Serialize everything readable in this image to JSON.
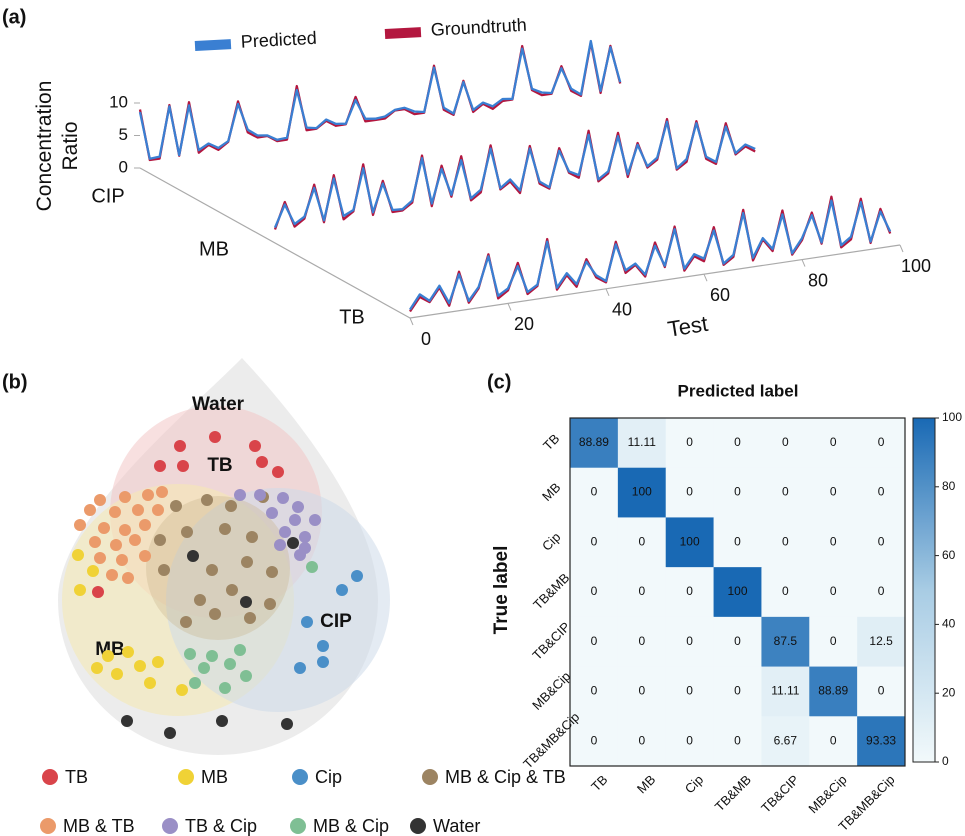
{
  "chart_data": [
    {
      "type": "line3d",
      "panel_label": "(a)",
      "ylabel": "Concentration Ratio",
      "xlabel": "Test",
      "z_categories": [
        "CIP",
        "MB",
        "TB"
      ],
      "xlim": [
        0,
        100
      ],
      "xticks": [
        0,
        20,
        40,
        60,
        80,
        100
      ],
      "ylim": [
        0,
        10
      ],
      "yticks": [
        0,
        5,
        10
      ],
      "x": [
        0,
        2,
        4,
        6,
        8,
        10,
        12,
        14,
        16,
        18,
        20,
        22,
        24,
        26,
        28,
        30,
        32,
        34,
        36,
        38,
        40,
        42,
        44,
        46,
        48,
        50,
        52,
        54,
        56,
        58,
        60,
        62,
        64,
        66,
        68,
        70,
        72,
        74,
        76,
        78,
        80,
        82,
        84,
        86,
        88,
        90,
        92,
        94,
        96,
        98
      ],
      "series": [
        {
          "name": "Predicted",
          "color": "#3a7fd2",
          "values": [
            [
              8.6,
              1.2,
              1.3,
              8.8,
              1.1,
              8.5,
              1.4,
              2.2,
              1.3,
              2.1,
              7.6,
              3.4,
              2.3,
              2.1,
              1.2,
              1.3,
              8.4,
              2.4,
              2.1,
              3.2,
              2.3,
              2.1,
              5.5,
              2.4,
              2.2,
              2.3,
              3.1,
              3.2,
              2.4,
              2.1,
              8.7,
              2.3,
              1.2,
              5.8,
              1.3,
              2.2,
              1.4,
              2.3,
              2.1,
              9.6,
              3.2,
              2.4,
              2.1,
              5.7,
              2.3,
              1.2,
              9.2,
              1.3,
              7.8,
              2.2
            ],
            [
              1.3,
              4.6,
              1.4,
              2.3,
              6.5,
              1.3,
              7.5,
              1.5,
              2.2,
              8.4,
              1.4,
              5.6,
              1.3,
              1.2,
              2.3,
              8.6,
              1.4,
              6.5,
              2.3,
              7.4,
              1.3,
              2.4,
              8.5,
              2.2,
              3.3,
              1.4,
              7.6,
              2.3,
              1.2,
              6.6,
              3.2,
              2.4,
              8.4,
              1.3,
              2.3,
              7.5,
              1.4,
              5.7,
              2.2,
              3.3,
              8.6,
              1.2,
              2.4,
              7.7,
              2.3,
              1.3,
              6.5,
              2.2,
              3.3,
              2.4
            ],
            [
              1.3,
              3.4,
              2.2,
              4.3,
              1.4,
              5.6,
              1.3,
              3.2,
              7.7,
              1.4,
              2.3,
              5.5,
              1.3,
              2.2,
              8.6,
              1.3,
              3.3,
              1.4,
              4.6,
              2.3,
              1.2,
              6.6,
              2.4,
              3.2,
              1.3,
              5.5,
              2.2,
              7.6,
              1.3,
              3.3,
              2.4,
              6.5,
              1.2,
              2.3,
              8.5,
              1.4,
              4.2,
              2.3,
              7.4,
              1.2,
              3.3,
              6.6,
              2.2,
              8.4,
              1.3,
              2.4,
              7.5,
              1.2,
              5.6,
              2.3
            ]
          ]
        },
        {
          "name": "Groundtruth",
          "color": "#b3173f",
          "values": [
            [
              9,
              1,
              1,
              9,
              1,
              9,
              1,
              2,
              1,
              2,
              8,
              3,
              2,
              2,
              1,
              1,
              9,
              2,
              2,
              3,
              2,
              2,
              6,
              2,
              2,
              2,
              3,
              3,
              2,
              2,
              9,
              2,
              1,
              6,
              1,
              2,
              1,
              2,
              2,
              10,
              3,
              2,
              2,
              6,
              2,
              1,
              9,
              1,
              8,
              2
            ],
            [
              1,
              5,
              1,
              2,
              7,
              1,
              8,
              1,
              2,
              9,
              1,
              6,
              1,
              1,
              2,
              9,
              1,
              7,
              2,
              8,
              1,
              2,
              9,
              2,
              3,
              1,
              8,
              2,
              1,
              7,
              3,
              2,
              9,
              1,
              2,
              8,
              1,
              6,
              2,
              3,
              9,
              1,
              2,
              8,
              2,
              1,
              7,
              2,
              3,
              2
            ],
            [
              1,
              3,
              2,
              4,
              1,
              6,
              1,
              3,
              8,
              1,
              2,
              6,
              1,
              2,
              9,
              1,
              3,
              1,
              5,
              2,
              1,
              7,
              2,
              3,
              1,
              6,
              2,
              8,
              1,
              3,
              2,
              7,
              1,
              2,
              9,
              1,
              4,
              2,
              8,
              1,
              3,
              7,
              2,
              9,
              1,
              2,
              8,
              1,
              6,
              2
            ]
          ]
        }
      ]
    },
    {
      "type": "venn",
      "panel_label": "(b)",
      "regions": [
        {
          "label": "Water",
          "color": "#e6e6e6"
        },
        {
          "label": "TB",
          "color": "#f3c6c6"
        },
        {
          "label": "MB",
          "color": "#f6eab0"
        },
        {
          "label": "CIP",
          "color": "#cddbea"
        }
      ],
      "legend": [
        {
          "label": "TB",
          "color": "#d9444a"
        },
        {
          "label": "MB",
          "color": "#f0d236"
        },
        {
          "label": "Cip",
          "color": "#4a8fc8"
        },
        {
          "label": "MB & Cip & TB",
          "color": "#9c8462"
        },
        {
          "label": "MB & TB",
          "color": "#eb9a6a"
        },
        {
          "label": "TB & Cip",
          "color": "#9a8fc6"
        },
        {
          "label": "MB & Cip",
          "color": "#7fbf94"
        },
        {
          "label": "Water",
          "color": "#333333"
        }
      ]
    },
    {
      "type": "heatmap",
      "panel_label": "(c)",
      "title": "Predicted label",
      "ylabel": "True label",
      "categories": [
        "TB",
        "MB",
        "Cip",
        "TB&MB",
        "TB&CIP",
        "MB&Cip",
        "TB&MB&Cip"
      ],
      "values": [
        [
          88.89,
          11.11,
          0,
          0,
          0,
          0,
          0
        ],
        [
          0,
          100,
          0,
          0,
          0,
          0,
          0
        ],
        [
          0,
          0,
          100,
          0,
          0,
          0,
          0
        ],
        [
          0,
          0,
          0,
          100,
          0,
          0,
          0
        ],
        [
          0,
          0,
          0,
          0,
          87.5,
          0,
          12.5
        ],
        [
          0,
          0,
          0,
          0,
          11.11,
          88.89,
          0
        ],
        [
          0,
          0,
          0,
          0,
          6.67,
          0,
          93.33
        ]
      ],
      "zlim": [
        0,
        100
      ],
      "zticks": [
        0,
        20,
        40,
        60,
        80,
        100
      ]
    }
  ]
}
